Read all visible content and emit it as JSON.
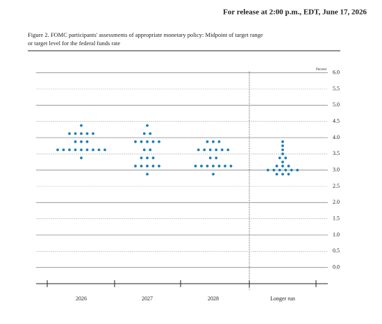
{
  "header": "For release at 2:00 p.m., EDT, June 17, 2026",
  "chart_data": {
    "type": "dotplot",
    "title_lines": [
      "Figure 2. FOMC participants' assessments of appropriate monetary policy: Midpoint of target range",
      "or target level for the federal funds rate"
    ],
    "y_axis_label": "Percent",
    "categories": [
      "2026",
      "2027",
      "2028",
      "Longer run"
    ],
    "color": "#1a7fb4",
    "dots": [
      [
        {
          "value": 4.375,
          "count": 1
        },
        {
          "value": 4.125,
          "count": 5
        },
        {
          "value": 3.875,
          "count": 3
        },
        {
          "value": 3.625,
          "count": 9
        },
        {
          "value": 3.375,
          "count": 1
        }
      ],
      [
        {
          "value": 4.375,
          "count": 1
        },
        {
          "value": 4.125,
          "count": 2
        },
        {
          "value": 3.875,
          "count": 5
        },
        {
          "value": 3.625,
          "count": 2
        },
        {
          "value": 3.375,
          "count": 3
        },
        {
          "value": 3.125,
          "count": 5
        },
        {
          "value": 2.875,
          "count": 1
        }
      ],
      [
        {
          "value": 3.875,
          "count": 3
        },
        {
          "value": 3.625,
          "count": 6
        },
        {
          "value": 3.375,
          "count": 2
        },
        {
          "value": 3.125,
          "count": 7
        },
        {
          "value": 2.875,
          "count": 1
        }
      ],
      [
        {
          "value": 3.875,
          "count": 1
        },
        {
          "value": 3.75,
          "count": 1
        },
        {
          "value": 3.625,
          "count": 1
        },
        {
          "value": 3.5,
          "count": 1
        },
        {
          "value": 3.375,
          "count": 2
        },
        {
          "value": 3.25,
          "count": 1
        },
        {
          "value": 3.125,
          "count": 3
        },
        {
          "value": 3.0,
          "count": 6
        },
        {
          "value": 2.875,
          "count": 3
        }
      ]
    ],
    "ylim": [
      -0.5,
      6.1
    ],
    "yticks": [
      {
        "value": 0,
        "label": "0.0"
      },
      0.5,
      {
        "value": 1,
        "label": "1.0"
      },
      1.5,
      {
        "value": 2,
        "label": "2.0"
      },
      2.5,
      {
        "value": 3,
        "label": "3.0"
      },
      3.5,
      {
        "value": 4,
        "label": "4.0"
      },
      4.5,
      {
        "value": 5,
        "label": "5.0"
      },
      5.5,
      {
        "value": 6,
        "label": "6.0"
      }
    ],
    "grid": true
  }
}
